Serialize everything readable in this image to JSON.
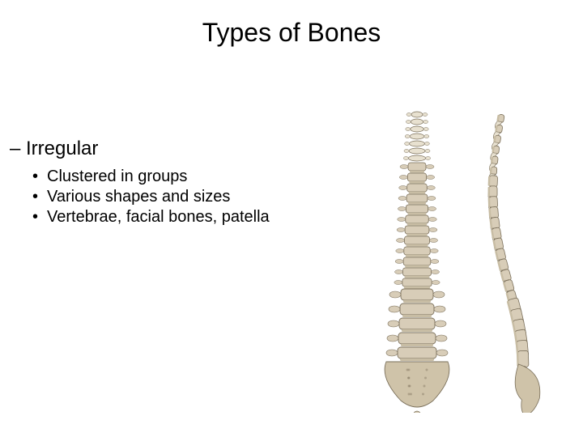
{
  "title": "Types of Bones",
  "subheading_prefix": "– ",
  "subheading": "Irregular",
  "bullet_marker": "•",
  "bullets": [
    "Clustered in groups",
    "Various shapes and sizes",
    "Vertebrae, facial bones, patella"
  ],
  "illustration": {
    "description": "Two views of a human spinal column (anterior and lateral)",
    "bone_fill": "#d8cdb8",
    "bone_fill_light": "#e8e1d0",
    "bone_stroke": "#7a6f5a",
    "disc_fill": "#c8bda4",
    "sacrum_fill": "#cfc3a9",
    "background": "#ffffff"
  }
}
